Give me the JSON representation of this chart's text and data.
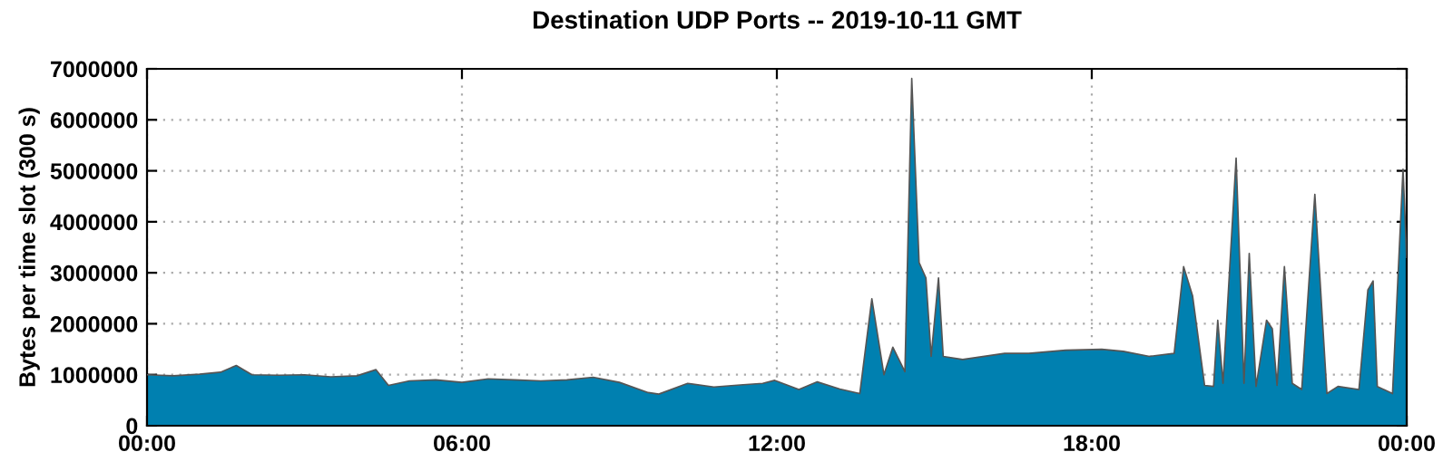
{
  "chart_data": {
    "type": "area",
    "title": "Destination UDP Ports -- 2019-10-11 GMT",
    "ylabel": "Bytes per time slot (300 s)",
    "x": [
      0,
      0.5,
      1.0,
      1.4,
      1.7,
      2.0,
      2.5,
      3.0,
      3.5,
      4.0,
      4.36,
      4.6,
      5.0,
      5.5,
      6.0,
      6.5,
      7.0,
      7.5,
      8.0,
      8.5,
      9.0,
      9.55,
      9.75,
      10.3,
      10.8,
      11.3,
      11.73,
      11.96,
      12.42,
      12.77,
      13.2,
      13.58,
      13.81,
      14.04,
      14.21,
      14.44,
      14.57,
      14.71,
      14.84,
      14.94,
      15.08,
      15.17,
      15.54,
      16.34,
      16.8,
      17.5,
      18.19,
      18.6,
      19.1,
      19.57,
      19.75,
      19.92,
      20.15,
      20.32,
      20.4,
      20.5,
      20.75,
      20.9,
      21.0,
      21.13,
      21.33,
      21.44,
      21.53,
      21.67,
      21.82,
      22.0,
      22.25,
      22.48,
      22.69,
      23.09,
      23.26,
      23.36,
      23.44,
      23.73,
      23.93,
      24
    ],
    "series": [
      {
        "color": "#0080b0",
        "values": [
          1000000,
          980000,
          1010000,
          1050000,
          1180000,
          1000000,
          990000,
          1000000,
          960000,
          980000,
          1100000,
          790000,
          880000,
          900000,
          850000,
          920000,
          900000,
          880000,
          900000,
          950000,
          850000,
          650000,
          620000,
          830000,
          760000,
          800000,
          830000,
          890000,
          710000,
          860000,
          720000,
          630000,
          2490000,
          1000000,
          1540000,
          1060000,
          6810000,
          3200000,
          2900000,
          1360000,
          2900000,
          1360000,
          1300000,
          1420000,
          1420000,
          1480000,
          1500000,
          1460000,
          1360000,
          1420000,
          3120000,
          2550000,
          790000,
          770000,
          2070000,
          830000,
          5250000,
          830000,
          3380000,
          770000,
          2070000,
          1900000,
          790000,
          3120000,
          830000,
          710000,
          4540000,
          630000,
          770000,
          710000,
          2660000,
          2840000,
          770000,
          630000,
          5030000,
          3300000
        ]
      }
    ],
    "xlim": [
      0,
      24
    ],
    "xticks": [
      {
        "value": 0,
        "label": "00:00"
      },
      {
        "value": 6,
        "label": "06:00"
      },
      {
        "value": 12,
        "label": "12:00"
      },
      {
        "value": 18,
        "label": "18:00"
      },
      {
        "value": 24,
        "label": "00:00"
      }
    ],
    "ylim": [
      0,
      7000000
    ],
    "yticks": [
      0,
      1000000,
      2000000,
      3000000,
      4000000,
      5000000,
      6000000,
      7000000
    ],
    "grid": true
  }
}
